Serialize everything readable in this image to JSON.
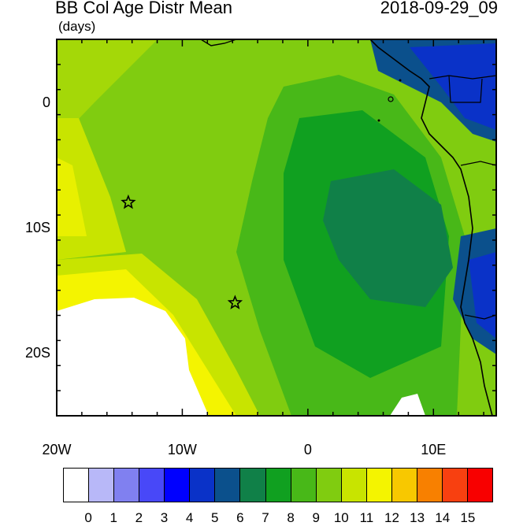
{
  "header": {
    "title": "BB Col Age Distr Mean",
    "units": "(days)",
    "timestamp": "2018-09-29_09"
  },
  "axes": {
    "x_ticks": [
      "20W",
      "10W",
      "0",
      "10E"
    ],
    "y_ticks": [
      "0",
      "10S",
      "20S"
    ],
    "lon_range": [
      -20,
      15
    ],
    "lat_range": [
      -25,
      5
    ]
  },
  "markers": [
    {
      "name": "star-marker-1",
      "lon": -14.3,
      "lat": -8.0
    },
    {
      "name": "star-marker-2",
      "lon": -5.8,
      "lat": -16.0
    }
  ],
  "colorbar": {
    "labels": [
      "0",
      "1",
      "2",
      "3",
      "4",
      "5",
      "6",
      "7",
      "8",
      "9",
      "10",
      "11",
      "12",
      "13",
      "14",
      "15"
    ],
    "colors": [
      "#ffffff",
      "#b8b8f8",
      "#8080f0",
      "#4848f8",
      "#0000ff",
      "#0a32c8",
      "#0b508c",
      "#108048",
      "#10a020",
      "#48b818",
      "#80cc10",
      "#c8e400",
      "#f4f400",
      "#f8c800",
      "#f88000",
      "#f84010",
      "#f80000"
    ]
  }
}
